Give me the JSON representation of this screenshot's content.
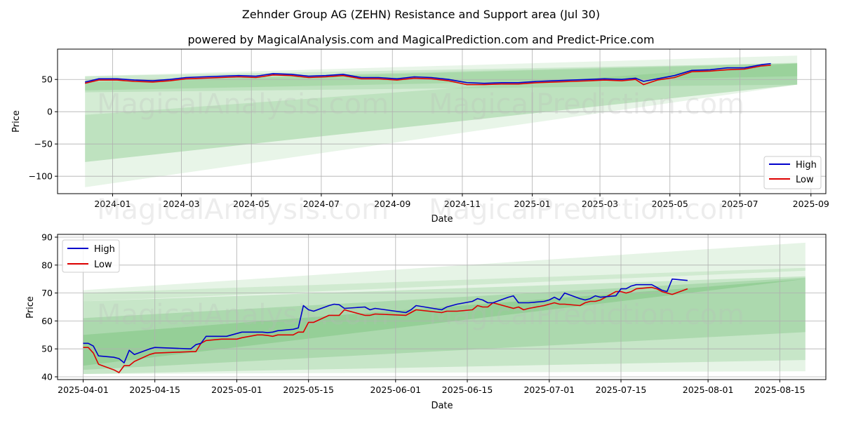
{
  "title": "Zehnder Group AG (ZEHN) Resistance and Support area (Jul 30)",
  "subtitle": "powered by MagicalAnalysis.com and MagicalPrediction.com and Predict-Price.com",
  "watermarks": [
    "MagicalAnalysis.com",
    "MagicalPrediction.com"
  ],
  "colors": {
    "high": "#0000cc",
    "low": "#dd0000",
    "band": "#4caf50"
  },
  "chart_data": [
    {
      "type": "line",
      "xlabel": "Date",
      "ylabel": "Price",
      "xlim": [
        "2023-11-14",
        "2025-09-14"
      ],
      "ylim": [
        -127,
        97
      ],
      "grid": true,
      "legend": "lower-right",
      "x_ticks": [
        "2024-01",
        "2024-03",
        "2024-05",
        "2024-07",
        "2024-09",
        "2024-11",
        "2025-01",
        "2025-03",
        "2025-05",
        "2025-07",
        "2025-09"
      ],
      "y_ticks": [
        -100,
        -50,
        0,
        50
      ],
      "series": [
        {
          "name": "High",
          "x": [
            "2023-12-08",
            "2023-12-20",
            "2024-01-05",
            "2024-01-20",
            "2024-02-05",
            "2024-02-20",
            "2024-03-05",
            "2024-03-20",
            "2024-04-05",
            "2024-04-20",
            "2024-05-05",
            "2024-05-20",
            "2024-06-05",
            "2024-06-20",
            "2024-07-05",
            "2024-07-20",
            "2024-08-05",
            "2024-08-20",
            "2024-09-05",
            "2024-09-20",
            "2024-10-05",
            "2024-10-20",
            "2024-11-05",
            "2024-11-20",
            "2024-12-05",
            "2024-12-20",
            "2025-01-05",
            "2025-01-20",
            "2025-02-05",
            "2025-02-20",
            "2025-03-05",
            "2025-03-20",
            "2025-04-01",
            "2025-04-08",
            "2025-04-20",
            "2025-05-05",
            "2025-05-20",
            "2025-06-05",
            "2025-06-20",
            "2025-07-05",
            "2025-07-20",
            "2025-07-28"
          ],
          "values": [
            46,
            51,
            51,
            49,
            48,
            50,
            53,
            54,
            55,
            56,
            55,
            59,
            58,
            55,
            56,
            58,
            53,
            53,
            51,
            54,
            53,
            50,
            45,
            44,
            45,
            45,
            47,
            48,
            49,
            50,
            51,
            50,
            52,
            47,
            51,
            56,
            64,
            65,
            68,
            68,
            73,
            74.5
          ]
        },
        {
          "name": "Low",
          "x": [
            "2023-12-08",
            "2023-12-20",
            "2024-01-05",
            "2024-01-20",
            "2024-02-05",
            "2024-02-20",
            "2024-03-05",
            "2024-03-20",
            "2024-04-05",
            "2024-04-20",
            "2024-05-05",
            "2024-05-20",
            "2024-06-05",
            "2024-06-20",
            "2024-07-05",
            "2024-07-20",
            "2024-08-05",
            "2024-08-20",
            "2024-09-05",
            "2024-09-20",
            "2024-10-05",
            "2024-10-20",
            "2024-11-05",
            "2024-11-20",
            "2024-12-05",
            "2024-12-20",
            "2025-01-05",
            "2025-01-20",
            "2025-02-05",
            "2025-02-20",
            "2025-03-05",
            "2025-03-20",
            "2025-04-01",
            "2025-04-08",
            "2025-04-20",
            "2025-05-05",
            "2025-05-20",
            "2025-06-05",
            "2025-06-20",
            "2025-07-05",
            "2025-07-20",
            "2025-07-28"
          ],
          "values": [
            44,
            49,
            49,
            47,
            46,
            48,
            51,
            52,
            53,
            54,
            53,
            57,
            56,
            53,
            54,
            56,
            51,
            51,
            49,
            52,
            51,
            48,
            42,
            42,
            43,
            43,
            45,
            46,
            47,
            48,
            49,
            48,
            50,
            42,
            49,
            53,
            62,
            63,
            65,
            66,
            71,
            72
          ]
        }
      ],
      "bands": [
        {
          "x": [
            "2023-12-08",
            "2025-08-20"
          ],
          "upper": [
            55,
            87
          ],
          "lower": [
            -117,
            42
          ]
        },
        {
          "x": [
            "2023-12-08",
            "2025-08-20"
          ],
          "upper": [
            48,
            76
          ],
          "lower": [
            -78,
            42
          ]
        },
        {
          "x": [
            "2023-12-08",
            "2025-08-20"
          ],
          "upper": [
            -5,
            75
          ],
          "lower": [
            -78,
            42
          ]
        },
        {
          "x": [
            "2023-12-08",
            "2025-08-20"
          ],
          "upper": [
            55,
            75
          ],
          "lower": [
            30,
            42
          ]
        },
        {
          "x": [
            "2023-12-08",
            "2025-08-20"
          ],
          "upper": [
            46,
            75
          ],
          "lower": [
            33,
            55
          ]
        }
      ]
    },
    {
      "type": "line",
      "xlabel": "Date",
      "ylabel": "Price",
      "xlim": [
        "2025-03-27",
        "2025-08-24"
      ],
      "ylim": [
        39,
        91
      ],
      "grid": true,
      "legend": "upper-left",
      "x_ticks": [
        "2025-04-01",
        "2025-04-15",
        "2025-05-01",
        "2025-05-15",
        "2025-06-01",
        "2025-06-15",
        "2025-07-01",
        "2025-07-15",
        "2025-08-01",
        "2025-08-15"
      ],
      "y_ticks": [
        40,
        50,
        60,
        70,
        80,
        90
      ],
      "series": [
        {
          "name": "High",
          "x": [
            "2025-04-01",
            "2025-04-02",
            "2025-04-03",
            "2025-04-04",
            "2025-04-07",
            "2025-04-08",
            "2025-04-09",
            "2025-04-10",
            "2025-04-11",
            "2025-04-14",
            "2025-04-15",
            "2025-04-22",
            "2025-04-23",
            "2025-04-24",
            "2025-04-25",
            "2025-04-28",
            "2025-04-29",
            "2025-04-30",
            "2025-05-01",
            "2025-05-02",
            "2025-05-05",
            "2025-05-06",
            "2025-05-07",
            "2025-05-08",
            "2025-05-09",
            "2025-05-12",
            "2025-05-13",
            "2025-05-14",
            "2025-05-15",
            "2025-05-16",
            "2025-05-19",
            "2025-05-20",
            "2025-05-21",
            "2025-05-22",
            "2025-05-26",
            "2025-05-27",
            "2025-05-28",
            "2025-06-03",
            "2025-06-04",
            "2025-06-05",
            "2025-06-10",
            "2025-06-11",
            "2025-06-12",
            "2025-06-13",
            "2025-06-16",
            "2025-06-17",
            "2025-06-18",
            "2025-06-19",
            "2025-06-20",
            "2025-06-23",
            "2025-06-24",
            "2025-06-25",
            "2025-06-26",
            "2025-06-27",
            "2025-06-30",
            "2025-07-01",
            "2025-07-02",
            "2025-07-03",
            "2025-07-04",
            "2025-07-07",
            "2025-07-08",
            "2025-07-09",
            "2025-07-10",
            "2025-07-11",
            "2025-07-14",
            "2025-07-15",
            "2025-07-16",
            "2025-07-17",
            "2025-07-18",
            "2025-07-21",
            "2025-07-22",
            "2025-07-23",
            "2025-07-24",
            "2025-07-25",
            "2025-07-28"
          ],
          "values": [
            52,
            52,
            51,
            47.5,
            47,
            46.5,
            45,
            49.5,
            48,
            50,
            50.5,
            50,
            51.5,
            52,
            54.5,
            54.5,
            54.5,
            55,
            55.5,
            56,
            56,
            56,
            55.8,
            56,
            56.5,
            57,
            57.5,
            65.5,
            64,
            63.5,
            65.5,
            66,
            65.8,
            64.5,
            65,
            64,
            64.5,
            63,
            64,
            65.5,
            64,
            65,
            65.5,
            66,
            67,
            68,
            67.5,
            66.5,
            66.5,
            68.5,
            69,
            66.5,
            66.5,
            66.5,
            67,
            67.5,
            68.5,
            67.5,
            70,
            68,
            67.5,
            68,
            69,
            68.5,
            69,
            71.5,
            71.5,
            72.5,
            73,
            73,
            72,
            71,
            70.5,
            75,
            74.5
          ]
        },
        {
          "name": "Low",
          "x": [
            "2025-04-01",
            "2025-04-02",
            "2025-04-03",
            "2025-04-04",
            "2025-04-07",
            "2025-04-08",
            "2025-04-09",
            "2025-04-10",
            "2025-04-11",
            "2025-04-14",
            "2025-04-15",
            "2025-04-22",
            "2025-04-23",
            "2025-04-24",
            "2025-04-25",
            "2025-04-28",
            "2025-04-29",
            "2025-04-30",
            "2025-05-01",
            "2025-05-02",
            "2025-05-05",
            "2025-05-06",
            "2025-05-07",
            "2025-05-08",
            "2025-05-09",
            "2025-05-12",
            "2025-05-13",
            "2025-05-14",
            "2025-05-15",
            "2025-05-16",
            "2025-05-19",
            "2025-05-20",
            "2025-05-21",
            "2025-05-22",
            "2025-05-26",
            "2025-05-27",
            "2025-05-28",
            "2025-06-03",
            "2025-06-04",
            "2025-06-05",
            "2025-06-10",
            "2025-06-11",
            "2025-06-12",
            "2025-06-13",
            "2025-06-16",
            "2025-06-17",
            "2025-06-18",
            "2025-06-19",
            "2025-06-20",
            "2025-06-23",
            "2025-06-24",
            "2025-06-25",
            "2025-06-26",
            "2025-06-27",
            "2025-06-30",
            "2025-07-01",
            "2025-07-02",
            "2025-07-03",
            "2025-07-04",
            "2025-07-07",
            "2025-07-08",
            "2025-07-09",
            "2025-07-10",
            "2025-07-11",
            "2025-07-14",
            "2025-07-15",
            "2025-07-16",
            "2025-07-17",
            "2025-07-18",
            "2025-07-21",
            "2025-07-22",
            "2025-07-23",
            "2025-07-24",
            "2025-07-25",
            "2025-07-28"
          ],
          "values": [
            50.5,
            50.5,
            48.5,
            44.5,
            42.5,
            41.5,
            44,
            44,
            45.5,
            48,
            48.5,
            49,
            49,
            52,
            53,
            53.5,
            53.5,
            53.5,
            53.5,
            54,
            55,
            55,
            54.8,
            54.5,
            55,
            55,
            56,
            56,
            59.5,
            59.5,
            62,
            62,
            62,
            64,
            62,
            62,
            62.5,
            62,
            63,
            64,
            63,
            63.5,
            63.5,
            63.5,
            64,
            65.5,
            65,
            65,
            66.5,
            65,
            64.5,
            65,
            64,
            64.5,
            65.5,
            66,
            66.5,
            66,
            66,
            65.5,
            66.5,
            67,
            67,
            67.5,
            70.5,
            70.5,
            70,
            70.5,
            71.5,
            72,
            71.5,
            70.5,
            70,
            69.5,
            71.5
          ]
        }
      ],
      "bands": [
        {
          "x": [
            "2025-04-01",
            "2025-08-20"
          ],
          "upper": [
            71,
            88
          ],
          "lower": [
            41,
            42
          ]
        },
        {
          "x": [
            "2025-04-01",
            "2025-08-20"
          ],
          "upper": [
            67,
            76
          ],
          "lower": [
            41,
            46
          ]
        },
        {
          "x": [
            "2025-04-01",
            "2025-08-20"
          ],
          "upper": [
            61,
            75.5
          ],
          "lower": [
            42.5,
            56
          ]
        },
        {
          "x": [
            "2025-04-01",
            "2025-08-20"
          ],
          "upper": [
            55,
            75
          ],
          "lower": [
            44,
            75
          ]
        },
        {
          "x": [
            "2025-04-01",
            "2025-08-20"
          ],
          "upper": [
            70,
            79
          ],
          "lower": [
            67,
            78
          ]
        }
      ]
    }
  ]
}
